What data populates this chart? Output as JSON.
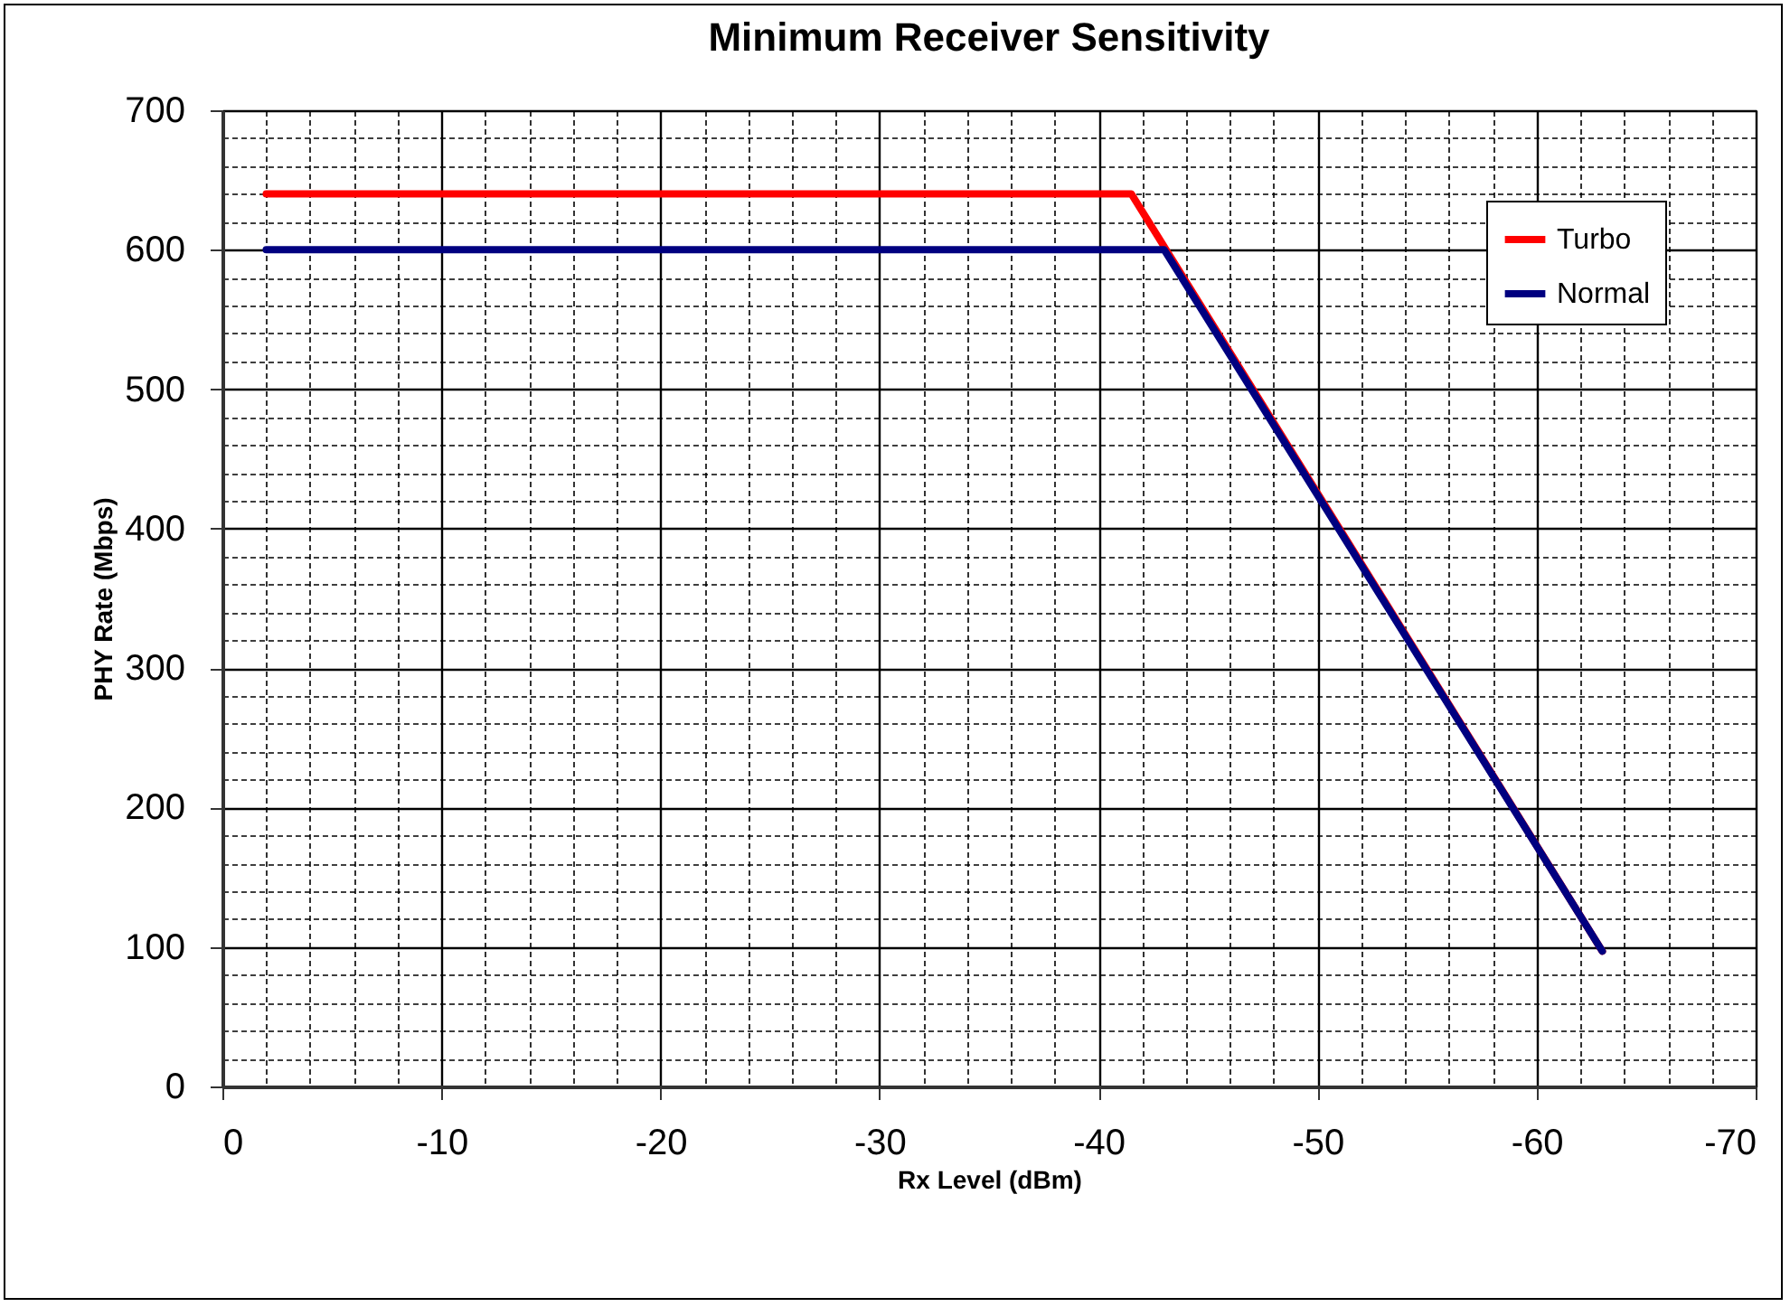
{
  "chart_data": {
    "type": "line",
    "title": "Minimum Receiver Sensitivity",
    "xlabel": "Rx Level (dBm)",
    "ylabel": "PHY Rate (Mbps)",
    "series": [
      {
        "name": "Turbo",
        "color": "#ff0000",
        "x": [
          -2,
          -41.5,
          -63
        ],
        "values": [
          640,
          640,
          97
        ]
      },
      {
        "name": "Normal",
        "color": "#000080",
        "x": [
          -2,
          -43,
          -63
        ],
        "values": [
          600,
          600,
          97
        ]
      }
    ],
    "xlim": [
      0,
      -70
    ],
    "xticks": [
      0,
      {
        "value": -2,
        "label": null
      },
      {
        "value": -4,
        "label": null
      },
      {
        "value": -6,
        "label": null
      },
      {
        "value": -8,
        "label": null
      },
      -10,
      {
        "value": -12,
        "label": null
      },
      {
        "value": -14,
        "label": null
      },
      {
        "value": -16,
        "label": null
      },
      {
        "value": -18,
        "label": null
      },
      -20,
      {
        "value": -22,
        "label": null
      },
      {
        "value": -24,
        "label": null
      },
      {
        "value": -26,
        "label": null
      },
      {
        "value": -28,
        "label": null
      },
      -30,
      {
        "value": -32,
        "label": null
      },
      {
        "value": -34,
        "label": null
      },
      {
        "value": -36,
        "label": null
      },
      {
        "value": -38,
        "label": null
      },
      -40,
      {
        "value": -42,
        "label": null
      },
      {
        "value": -44,
        "label": null
      },
      {
        "value": -46,
        "label": null
      },
      {
        "value": -48,
        "label": null
      },
      -50,
      {
        "value": -52,
        "label": null
      },
      {
        "value": -54,
        "label": null
      },
      {
        "value": -56,
        "label": null
      },
      {
        "value": -58,
        "label": null
      },
      -60,
      {
        "value": -62,
        "label": null
      },
      {
        "value": -64,
        "label": null
      },
      {
        "value": -66,
        "label": null
      },
      {
        "value": -68,
        "label": null
      },
      -70
    ],
    "ylim": [
      0,
      700
    ],
    "yticks": [
      0,
      {
        "value": 20,
        "label": null
      },
      {
        "value": 40,
        "label": null
      },
      {
        "value": 60,
        "label": null
      },
      {
        "value": 80,
        "label": null
      },
      100,
      {
        "value": 120,
        "label": null
      },
      {
        "value": 140,
        "label": null
      },
      {
        "value": 160,
        "label": null
      },
      {
        "value": 180,
        "label": null
      },
      200,
      {
        "value": 220,
        "label": null
      },
      {
        "value": 240,
        "label": null
      },
      {
        "value": 260,
        "label": null
      },
      {
        "value": 280,
        "label": null
      },
      300,
      {
        "value": 320,
        "label": null
      },
      {
        "value": 340,
        "label": null
      },
      {
        "value": 360,
        "label": null
      },
      {
        "value": 380,
        "label": null
      },
      400,
      {
        "value": 420,
        "label": null
      },
      {
        "value": 440,
        "label": null
      },
      {
        "value": 460,
        "label": null
      },
      {
        "value": 480,
        "label": null
      },
      500,
      {
        "value": 520,
        "label": null
      },
      {
        "value": 540,
        "label": null
      },
      {
        "value": 560,
        "label": null
      },
      {
        "value": 580,
        "label": null
      },
      600,
      {
        "value": 620,
        "label": null
      },
      {
        "value": 640,
        "label": null
      },
      {
        "value": 660,
        "label": null
      },
      {
        "value": 680,
        "label": null
      },
      700
    ],
    "grid": true,
    "legend": "top right",
    "marker": "none",
    "line_style": "solid"
  }
}
